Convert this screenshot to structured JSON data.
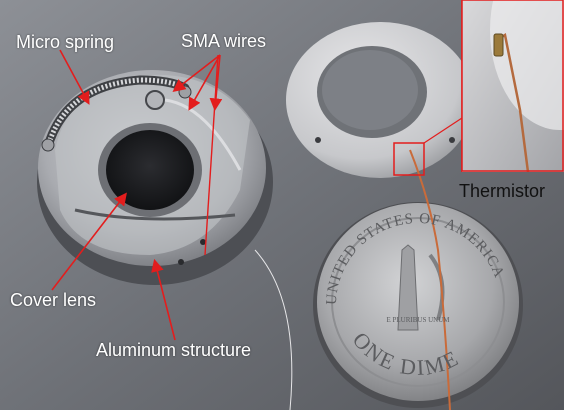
{
  "labels": {
    "micro_spring": "Micro spring",
    "sma_wires": "SMA wires",
    "cover_lens": "Cover lens",
    "aluminum_structure": "Aluminum structure",
    "thermistor": "Thermistor"
  },
  "colors": {
    "annotation_arrow": "#e31d1d",
    "label_text_light": "#ffffff",
    "label_text_dark": "#111111",
    "inset_border": "#e31d1d"
  },
  "dime": {
    "legend_top": "UNITED STATES OF AMERICA",
    "legend_bottom": "ONE DIME",
    "motto": "E PLURIBUS UNUM"
  }
}
